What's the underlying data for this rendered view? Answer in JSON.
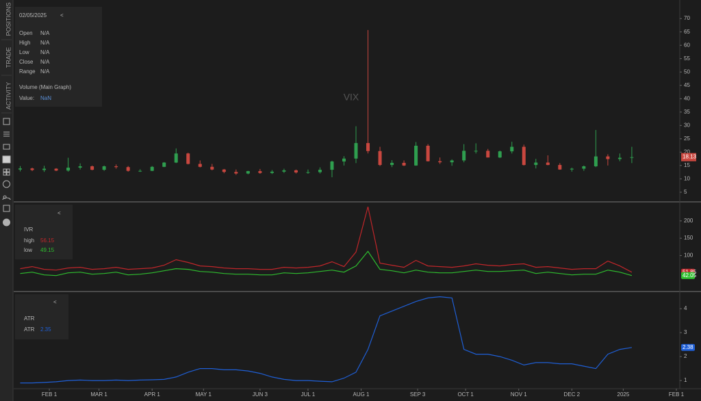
{
  "sidebar": {
    "tabs": [
      "POSITIONS",
      "TRADE",
      "ACTIVITY"
    ]
  },
  "collapse_buttons": [
    "<",
    "<",
    "<"
  ],
  "info_panel": {
    "date": "02/05/2025",
    "rows": [
      [
        "Open",
        "N/A"
      ],
      [
        "High",
        "N/A"
      ],
      [
        "Low",
        "N/A"
      ],
      [
        "Close",
        "N/A"
      ],
      [
        "Range",
        "N/A"
      ]
    ],
    "volume": "Volume (Main Graph)",
    "value_label": "Value:",
    "value": "NaN"
  },
  "chart_data": [
    {
      "type": "candlestick",
      "title": "VIX",
      "up_color": "#2f9e4f",
      "down_color": "#c9473f",
      "x": [
        14,
        21,
        28,
        35,
        42,
        49,
        56,
        63,
        70,
        77,
        84,
        91,
        98,
        105,
        112,
        119,
        126,
        133,
        140,
        147,
        154,
        161,
        168,
        175,
        182,
        189,
        196,
        203,
        210,
        217,
        224,
        231,
        238,
        245,
        252,
        259,
        266,
        273,
        280,
        287,
        294,
        301,
        308,
        315,
        322,
        329,
        336,
        343,
        350,
        357,
        364,
        371
      ],
      "open": [
        13.5,
        13.9,
        13.3,
        13.8,
        13.1,
        14.2,
        14.7,
        13.4,
        14.7,
        14.4,
        13.0,
        13.0,
        14.5,
        16.1,
        19.5,
        15.6,
        14.5,
        13.5,
        12.6,
        12.0,
        12.9,
        12.2,
        12.7,
        13.2,
        12.4,
        12.5,
        13.4,
        16.5,
        17.6,
        23.4,
        20.4,
        15.2,
        16.0,
        15.0,
        22.4,
        16.6,
        16.2,
        16.9,
        20.5,
        20.5,
        18.0,
        20.3,
        22.0,
        15.2,
        16.1,
        15.2,
        13.5,
        13.8,
        14.7,
        18.4,
        17.4,
        17.9
      ],
      "high": [
        14.8,
        14.2,
        14.9,
        14.0,
        17.9,
        15.8,
        15.0,
        15.0,
        15.4,
        14.8,
        13.6,
        14.8,
        16.3,
        21.4,
        19.8,
        16.9,
        15.6,
        13.7,
        13.5,
        13.0,
        13.7,
        13.3,
        13.8,
        13.5,
        13.5,
        14.3,
        16.8,
        18.5,
        29.7,
        65.7,
        22.0,
        17.0,
        16.9,
        23.8,
        23.0,
        18.0,
        17.3,
        23.0,
        23.3,
        21.2,
        20.6,
        23.9,
        22.8,
        17.5,
        18.8,
        15.9,
        14.2,
        15.0,
        28.3,
        19.2,
        19.5,
        22.0
      ],
      "low": [
        12.8,
        12.9,
        12.6,
        12.9,
        12.7,
        13.5,
        13.2,
        13.0,
        13.8,
        12.7,
        12.6,
        12.9,
        14.4,
        15.9,
        15.4,
        14.3,
        13.2,
        12.1,
        11.5,
        11.7,
        11.9,
        11.8,
        12.2,
        12.0,
        11.9,
        12.0,
        10.6,
        15.0,
        15.9,
        19.5,
        14.8,
        14.4,
        14.8,
        14.9,
        16.5,
        15.6,
        14.9,
        16.2,
        19.5,
        18.0,
        17.8,
        19.5,
        15.0,
        13.9,
        15.1,
        13.4,
        12.7,
        13.0,
        14.4,
        15.0,
        16.6,
        15.9
      ],
      "close": [
        13.9,
        13.3,
        13.8,
        13.1,
        14.2,
        14.7,
        13.4,
        14.7,
        14.4,
        13.0,
        13.0,
        14.5,
        16.1,
        19.5,
        15.6,
        14.5,
        13.5,
        12.6,
        12.0,
        12.9,
        12.2,
        12.7,
        13.2,
        12.4,
        12.5,
        13.4,
        16.5,
        17.6,
        23.4,
        20.4,
        15.2,
        16.0,
        15.0,
        22.4,
        16.6,
        16.2,
        16.9,
        20.5,
        20.5,
        18.0,
        20.3,
        22.0,
        15.2,
        16.1,
        15.2,
        13.5,
        13.8,
        14.7,
        18.4,
        17.4,
        17.9,
        18.13
      ],
      "last_label": "18.13",
      "xlim": [
        10.2,
        399
      ],
      "ylim": [
        1.9,
        74.9
      ],
      "yticks": [
        5,
        10,
        15,
        20,
        25,
        30,
        35,
        40,
        45,
        50,
        55,
        60,
        65,
        70
      ]
    },
    {
      "type": "line",
      "title": "IVR",
      "x": [
        14,
        21,
        28,
        35,
        42,
        49,
        56,
        63,
        70,
        77,
        84,
        91,
        98,
        105,
        112,
        119,
        126,
        133,
        140,
        147,
        154,
        161,
        168,
        175,
        182,
        189,
        196,
        203,
        210,
        217,
        224,
        231,
        238,
        245,
        252,
        259,
        266,
        273,
        280,
        287,
        294,
        301,
        308,
        315,
        322,
        329,
        336,
        343,
        350,
        357,
        364,
        371
      ],
      "series": [
        {
          "name": "high",
          "color": "#c0262a",
          "legend_value": "56.15",
          "last_label": "51.85",
          "values": [
            62,
            68,
            60,
            58,
            64,
            66,
            60,
            62,
            66,
            60,
            62,
            64,
            72,
            88,
            80,
            70,
            68,
            64,
            62,
            62,
            60,
            60,
            66,
            64,
            66,
            70,
            82,
            68,
            110,
            241,
            78,
            72,
            66,
            86,
            70,
            68,
            66,
            70,
            76,
            72,
            70,
            74,
            76,
            66,
            68,
            64,
            60,
            62,
            62,
            84,
            70,
            51.85
          ]
        },
        {
          "name": "low",
          "color": "#2fbf2f",
          "legend_value": "49.15",
          "last_label": "42.05",
          "values": [
            48,
            52,
            44,
            42,
            50,
            52,
            46,
            48,
            52,
            44,
            46,
            50,
            56,
            62,
            60,
            54,
            52,
            48,
            46,
            46,
            44,
            44,
            50,
            48,
            50,
            54,
            58,
            52,
            70,
            112,
            60,
            56,
            50,
            58,
            52,
            50,
            50,
            54,
            58,
            54,
            54,
            56,
            58,
            48,
            52,
            48,
            44,
            46,
            46,
            58,
            52,
            42.05
          ]
        }
      ],
      "xlim": [
        10.2,
        399
      ],
      "ylim": [
        0,
        251
      ],
      "yticks": [
        100,
        150,
        200
      ]
    },
    {
      "type": "line",
      "title": "ATR",
      "x": [
        14,
        21,
        28,
        35,
        42,
        49,
        56,
        63,
        70,
        77,
        84,
        91,
        98,
        105,
        112,
        119,
        126,
        133,
        140,
        147,
        154,
        161,
        168,
        175,
        182,
        189,
        196,
        203,
        210,
        217,
        224,
        231,
        238,
        245,
        252,
        259,
        266,
        273,
        280,
        287,
        294,
        301,
        308,
        315,
        322,
        329,
        336,
        343,
        350,
        357,
        364,
        371
      ],
      "series": [
        {
          "name": "ATR",
          "color": "#1f5fd6",
          "legend_value": "2.35",
          "last_label": "2.38",
          "values": [
            0.9,
            0.9,
            0.92,
            0.95,
            1.0,
            1.02,
            1.0,
            1.0,
            1.02,
            1.0,
            1.02,
            1.03,
            1.05,
            1.15,
            1.35,
            1.5,
            1.5,
            1.45,
            1.45,
            1.4,
            1.3,
            1.15,
            1.05,
            1.0,
            1.0,
            0.97,
            0.95,
            1.1,
            1.35,
            2.3,
            3.7,
            3.9,
            4.1,
            4.3,
            4.45,
            4.5,
            4.45,
            2.3,
            2.1,
            2.1,
            2.0,
            1.85,
            1.65,
            1.75,
            1.75,
            1.7,
            1.7,
            1.6,
            1.5,
            2.1,
            2.3,
            2.38
          ]
        }
      ],
      "xlim": [
        10.2,
        399
      ],
      "ylim": [
        0.66,
        4.66
      ],
      "yticks": [
        1,
        2,
        3,
        4
      ],
      "xticks": [
        {
          "value": 31,
          "label": "FEB 1"
        },
        {
          "value": 60,
          "label": "MAR 1"
        },
        {
          "value": 91,
          "label": "APR 1"
        },
        {
          "value": 121,
          "label": "MAY 1"
        },
        {
          "value": 154,
          "label": "JUN 3"
        },
        {
          "value": 182,
          "label": "JUL 1"
        },
        {
          "value": 213,
          "label": "AUG 1"
        },
        {
          "value": 246,
          "label": "SEP 3"
        },
        {
          "value": 274,
          "label": "OCT 1"
        },
        {
          "value": 305,
          "label": "NOV 1"
        },
        {
          "value": 336,
          "label": "DEC 2"
        },
        {
          "value": 366,
          "label": "2025"
        },
        {
          "value": 397,
          "label": "FEB 1"
        }
      ]
    }
  ]
}
